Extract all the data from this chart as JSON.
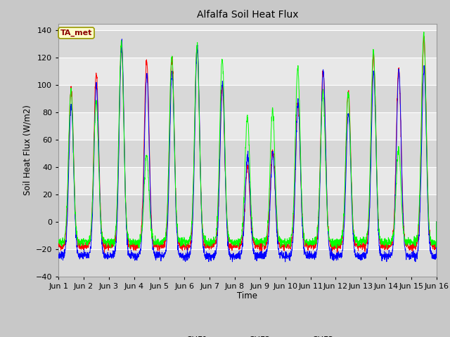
{
  "title": "Alfalfa Soil Heat Flux",
  "ylabel": "Soil Heat Flux (W/m2)",
  "xlabel": "Time",
  "annotation_text": "TA_met",
  "annotation_color": "#8B0000",
  "annotation_bg": "#FFFFCC",
  "annotation_border": "#999900",
  "line_colors": {
    "SHF1": "red",
    "SHF2": "blue",
    "SHF3": "lime"
  },
  "ylim": [
    -40,
    145
  ],
  "yticks": [
    -40,
    -20,
    0,
    20,
    40,
    60,
    80,
    100,
    120,
    140
  ],
  "n_days": 15,
  "bg_color": "#C8C8C8",
  "plot_bg": "#E8E8E8",
  "x_tick_labels": [
    "Jun 1",
    "Jun 2",
    "Jun 3",
    "Jun 4",
    "Jun 5",
    "Jun 6",
    "Jun 7",
    "Jun 8",
    "Jun 9",
    "Jun 10",
    "Jun 11",
    "Jun 12",
    "Jun 13",
    "Jun 14",
    "Jun 15",
    "Jun 16"
  ],
  "shf1_peaks": [
    97,
    108,
    130,
    118,
    120,
    128,
    100,
    40,
    52,
    88,
    110,
    95,
    122,
    112,
    135
  ],
  "shf2_peaks": [
    85,
    100,
    130,
    108,
    109,
    128,
    101,
    48,
    50,
    87,
    110,
    80,
    109,
    110,
    111
  ],
  "shf3_peaks": [
    97,
    88,
    131,
    49,
    121,
    129,
    120,
    77,
    81,
    113,
    95,
    94,
    125,
    53,
    137
  ],
  "shf1_night": -18,
  "shf2_night": -25,
  "shf3_night": -15
}
